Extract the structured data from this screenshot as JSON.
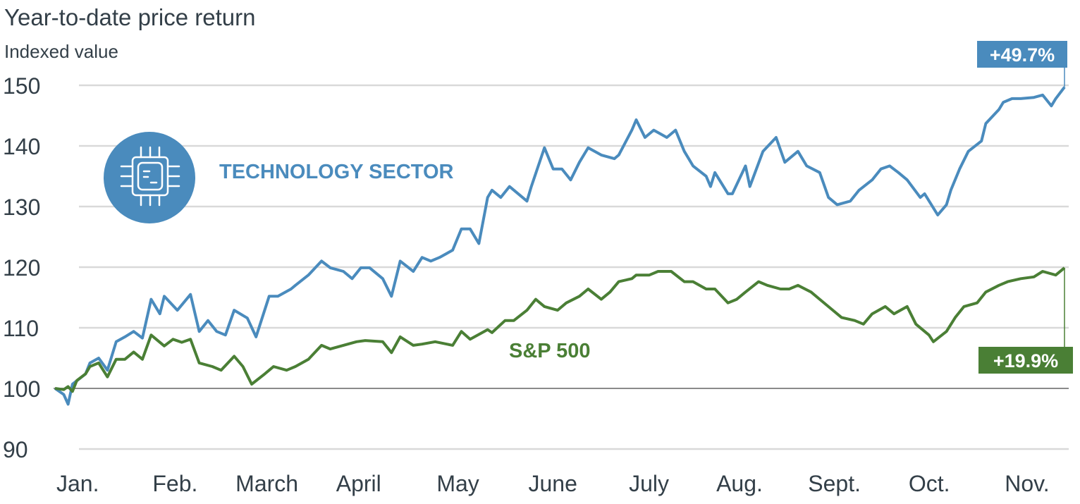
{
  "chart_data": {
    "type": "line",
    "title": "Year-to-date price return",
    "ylabel": "Indexed value",
    "xlabel": "",
    "ylim": [
      90,
      150
    ],
    "xlim": [
      0,
      231
    ],
    "yticks": [
      90,
      100,
      110,
      120,
      130,
      140,
      150
    ],
    "grid": true,
    "x_unit": "trading day",
    "months": [
      {
        "label": "Jan.",
        "day": 0
      },
      {
        "label": "Feb.",
        "day": 22
      },
      {
        "label": "March",
        "day": 41
      },
      {
        "label": "April",
        "day": 64
      },
      {
        "label": "May",
        "day": 87
      },
      {
        "label": "June",
        "day": 108
      },
      {
        "label": "July",
        "day": 131
      },
      {
        "label": "Aug.",
        "day": 151
      },
      {
        "label": "Sept.",
        "day": 172
      },
      {
        "label": "Oct.",
        "day": 195
      },
      {
        "label": "Nov.",
        "day": 217
      }
    ],
    "series": [
      {
        "name": "TECHNOLOGY SECTOR",
        "color": "#4a8bbd",
        "end_label": "+49.7%",
        "points": [
          [
            0,
            100
          ],
          [
            2,
            99
          ],
          [
            3,
            97.4
          ],
          [
            4,
            100.7
          ],
          [
            7,
            102.4
          ],
          [
            8,
            104.2
          ],
          [
            10,
            105
          ],
          [
            12,
            103
          ],
          [
            14,
            107.7
          ],
          [
            16,
            108.5
          ],
          [
            18,
            109.4
          ],
          [
            20,
            108.3
          ],
          [
            22,
            114.7
          ],
          [
            24,
            112.3
          ],
          [
            25,
            115.2
          ],
          [
            28,
            112.9
          ],
          [
            31,
            115.5
          ],
          [
            33,
            109.4
          ],
          [
            35,
            111.2
          ],
          [
            37,
            109.4
          ],
          [
            39,
            108.8
          ],
          [
            41,
            112.9
          ],
          [
            44,
            111.6
          ],
          [
            46,
            108.5
          ],
          [
            49,
            115.2
          ],
          [
            51,
            115.2
          ],
          [
            54,
            116.4
          ],
          [
            55,
            117
          ],
          [
            58,
            118.7
          ],
          [
            61,
            121
          ],
          [
            63,
            119.9
          ],
          [
            66,
            119.3
          ],
          [
            68,
            118.1
          ],
          [
            70,
            119.9
          ],
          [
            72,
            119.9
          ],
          [
            75,
            118.1
          ],
          [
            77,
            115.2
          ],
          [
            79,
            121
          ],
          [
            82,
            119.3
          ],
          [
            84,
            121.6
          ],
          [
            86,
            121
          ],
          [
            88,
            121.6
          ],
          [
            91,
            122.8
          ],
          [
            93,
            126.3
          ],
          [
            95,
            126.3
          ],
          [
            97,
            123.9
          ],
          [
            99,
            131.5
          ],
          [
            100,
            132.7
          ],
          [
            102,
            131.5
          ],
          [
            104,
            133.3
          ],
          [
            106,
            132.1
          ],
          [
            108,
            130.9
          ],
          [
            109,
            133.3
          ],
          [
            112,
            139.7
          ],
          [
            114,
            136.2
          ],
          [
            116,
            136.2
          ],
          [
            118,
            134.4
          ],
          [
            120,
            137.3
          ],
          [
            122,
            139.7
          ],
          [
            125,
            138.5
          ],
          [
            128,
            137.9
          ],
          [
            129,
            138.5
          ],
          [
            132,
            142.6
          ],
          [
            133,
            144.3
          ],
          [
            135,
            141.4
          ],
          [
            137,
            142.6
          ],
          [
            140,
            141.4
          ],
          [
            142,
            142.6
          ],
          [
            144,
            139.1
          ],
          [
            146,
            136.7
          ],
          [
            149,
            135
          ],
          [
            150,
            133.3
          ],
          [
            151,
            135.6
          ],
          [
            154,
            132.1
          ],
          [
            155,
            132.1
          ],
          [
            158,
            136.7
          ],
          [
            159,
            133.3
          ],
          [
            162,
            139.1
          ],
          [
            165,
            141.4
          ],
          [
            167,
            137.3
          ],
          [
            170,
            139.1
          ],
          [
            172,
            136.7
          ],
          [
            175,
            135.6
          ],
          [
            177,
            131.5
          ],
          [
            179,
            130.3
          ],
          [
            182,
            130.9
          ],
          [
            184,
            132.7
          ],
          [
            187,
            134.4
          ],
          [
            189,
            136.2
          ],
          [
            191,
            136.7
          ],
          [
            193,
            135.6
          ],
          [
            195,
            134.4
          ],
          [
            198,
            131.5
          ],
          [
            199,
            132.1
          ],
          [
            202,
            128.6
          ],
          [
            204,
            130.3
          ],
          [
            205,
            132.7
          ],
          [
            207,
            136.2
          ],
          [
            209,
            139.1
          ],
          [
            212,
            140.8
          ],
          [
            213,
            143.7
          ],
          [
            216,
            146
          ],
          [
            217,
            147.2
          ],
          [
            219,
            147.8
          ],
          [
            221,
            147.8
          ],
          [
            224,
            148
          ],
          [
            226,
            148.4
          ],
          [
            228,
            146.6
          ],
          [
            229,
            147.8
          ],
          [
            231,
            149.7
          ]
        ]
      },
      {
        "name": "S&P 500",
        "color": "#4a7f35",
        "end_label": "+19.9%",
        "points": [
          [
            0,
            100
          ],
          [
            2,
            99.8
          ],
          [
            3,
            100.3
          ],
          [
            4,
            99.5
          ],
          [
            5,
            101.3
          ],
          [
            7,
            102.4
          ],
          [
            8,
            103.6
          ],
          [
            10,
            104.2
          ],
          [
            12,
            101.9
          ],
          [
            14,
            104.8
          ],
          [
            16,
            104.8
          ],
          [
            18,
            106
          ],
          [
            20,
            104.8
          ],
          [
            22,
            108.8
          ],
          [
            25,
            107
          ],
          [
            27,
            108.1
          ],
          [
            29,
            107.6
          ],
          [
            31,
            108.1
          ],
          [
            33,
            104.2
          ],
          [
            36,
            103.6
          ],
          [
            38,
            103
          ],
          [
            41,
            105.3
          ],
          [
            43,
            103.6
          ],
          [
            45,
            100.7
          ],
          [
            48,
            102.4
          ],
          [
            50,
            103.6
          ],
          [
            53,
            103
          ],
          [
            55,
            103.6
          ],
          [
            58,
            104.8
          ],
          [
            61,
            107.1
          ],
          [
            63,
            106.5
          ],
          [
            66,
            107.1
          ],
          [
            69,
            107.7
          ],
          [
            71,
            107.9
          ],
          [
            75,
            107.7
          ],
          [
            77,
            105.9
          ],
          [
            79,
            108.5
          ],
          [
            82,
            107.1
          ],
          [
            84,
            107.3
          ],
          [
            87,
            107.7
          ],
          [
            91,
            107.1
          ],
          [
            93,
            109.4
          ],
          [
            95,
            108.1
          ],
          [
            99,
            109.7
          ],
          [
            100,
            109.2
          ],
          [
            103,
            111.2
          ],
          [
            105,
            111.2
          ],
          [
            108,
            112.9
          ],
          [
            110,
            114.7
          ],
          [
            112,
            113.5
          ],
          [
            115,
            112.9
          ],
          [
            117,
            114.1
          ],
          [
            120,
            115.2
          ],
          [
            122,
            116.4
          ],
          [
            125,
            114.7
          ],
          [
            127,
            115.9
          ],
          [
            129,
            117.6
          ],
          [
            132,
            118.1
          ],
          [
            133,
            118.7
          ],
          [
            136,
            118.7
          ],
          [
            138,
            119.3
          ],
          [
            141,
            119.3
          ],
          [
            144,
            117.6
          ],
          [
            146,
            117.6
          ],
          [
            149,
            116.4
          ],
          [
            151,
            116.4
          ],
          [
            154,
            114.1
          ],
          [
            156,
            114.7
          ],
          [
            158,
            115.9
          ],
          [
            161,
            117.6
          ],
          [
            163,
            117
          ],
          [
            166,
            116.4
          ],
          [
            168,
            116.4
          ],
          [
            170,
            117
          ],
          [
            173,
            115.9
          ],
          [
            175,
            114.7
          ],
          [
            178,
            112.9
          ],
          [
            180,
            111.7
          ],
          [
            183,
            111.2
          ],
          [
            185,
            110.6
          ],
          [
            187,
            112.3
          ],
          [
            190,
            113.5
          ],
          [
            192,
            112.3
          ],
          [
            195,
            113.5
          ],
          [
            197,
            110.6
          ],
          [
            200,
            108.8
          ],
          [
            201,
            107.7
          ],
          [
            204,
            109.4
          ],
          [
            206,
            111.7
          ],
          [
            208,
            113.5
          ],
          [
            211,
            114.1
          ],
          [
            213,
            115.9
          ],
          [
            216,
            117
          ],
          [
            218,
            117.6
          ],
          [
            221,
            118.1
          ],
          [
            224,
            118.4
          ],
          [
            226,
            119.3
          ],
          [
            229,
            118.7
          ],
          [
            231,
            119.9
          ]
        ]
      }
    ]
  }
}
